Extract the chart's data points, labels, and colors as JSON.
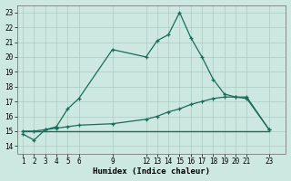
{
  "xlabel": "Humidex (Indice chaleur)",
  "bg_color": "#cce8e0",
  "grid_color": "#aaccc4",
  "line_color": "#1a6b5a",
  "xlim": [
    0.5,
    24.5
  ],
  "ylim": [
    13.5,
    23.5
  ],
  "xticks": [
    1,
    2,
    3,
    4,
    5,
    6,
    9,
    12,
    13,
    14,
    15,
    16,
    17,
    18,
    19,
    20,
    21,
    23
  ],
  "yticks": [
    14,
    15,
    16,
    17,
    18,
    19,
    20,
    21,
    22,
    23
  ],
  "line1_x": [
    1,
    2,
    3,
    4,
    5,
    6,
    9,
    12,
    13,
    14,
    15,
    16,
    17,
    18,
    19,
    20,
    21,
    23
  ],
  "line1_y": [
    14.8,
    14.4,
    15.1,
    15.3,
    16.5,
    17.2,
    20.5,
    20.0,
    21.1,
    21.5,
    23.0,
    21.3,
    20.0,
    18.5,
    17.5,
    17.3,
    17.2,
    15.1
  ],
  "line2_x": [
    1,
    2,
    3,
    4,
    5,
    6,
    9,
    12,
    13,
    14,
    15,
    16,
    17,
    18,
    19,
    20,
    21,
    23
  ],
  "line2_y": [
    15.0,
    15.0,
    15.1,
    15.2,
    15.3,
    15.4,
    15.5,
    15.8,
    16.0,
    16.3,
    16.5,
    16.8,
    17.0,
    17.2,
    17.3,
    17.3,
    17.3,
    15.1
  ],
  "line3_x": [
    1,
    23
  ],
  "line3_y": [
    15.0,
    15.0
  ]
}
